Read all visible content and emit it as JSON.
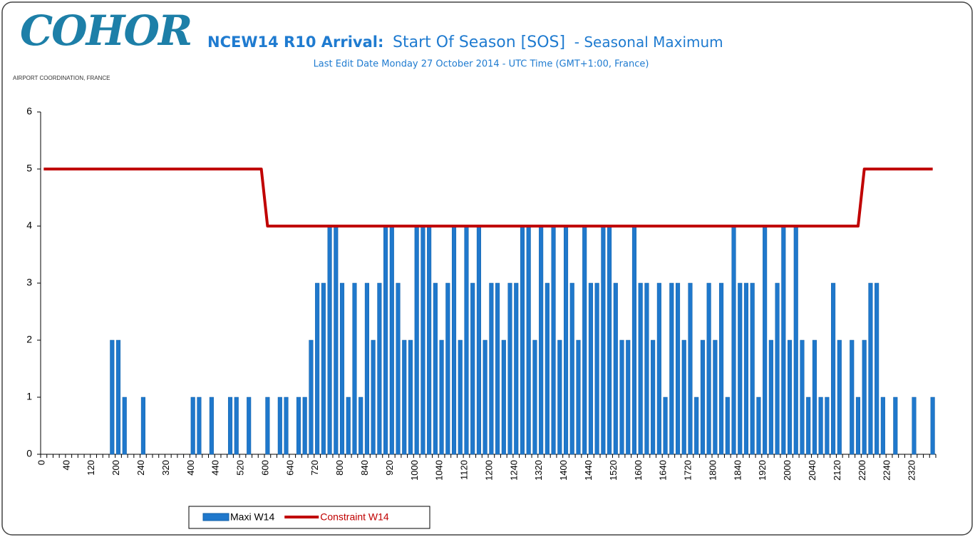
{
  "logo": {
    "name": "COHOR",
    "tagline": "AIRPORT COORDINATION, FRANCE"
  },
  "chart_data": {
    "type": "bar",
    "title": [
      "NCEW14 R10 Arrival:",
      "Start Of Season  [SOS]",
      "- Seasonal Maximum"
    ],
    "subtitle": "Last Edit Date Monday 27 October 2014 - UTC Time (GMT+1:00, France)",
    "categories": [
      "0",
      null,
      null,
      null,
      "40",
      null,
      null,
      null,
      "120",
      null,
      null,
      null,
      "200",
      null,
      null,
      null,
      "240",
      null,
      null,
      null,
      "320",
      null,
      null,
      null,
      "400",
      null,
      null,
      null,
      "440",
      null,
      null,
      null,
      "520",
      null,
      null,
      null,
      "600",
      null,
      null,
      null,
      "640",
      null,
      null,
      null,
      "720",
      null,
      null,
      null,
      "800",
      null,
      null,
      null,
      "840",
      null,
      null,
      null,
      "920",
      null,
      null,
      null,
      "1000",
      null,
      null,
      null,
      "1040",
      null,
      null,
      null,
      "1120",
      null,
      null,
      null,
      "1200",
      null,
      null,
      null,
      "1240",
      null,
      null,
      null,
      "1320",
      null,
      null,
      null,
      "1400",
      null,
      null,
      null,
      "1440",
      null,
      null,
      null,
      "1520",
      null,
      null,
      null,
      "1600",
      null,
      null,
      null,
      "1640",
      null,
      null,
      null,
      "1720",
      null,
      null,
      null,
      "1800",
      null,
      null,
      null,
      "1840",
      null,
      null,
      null,
      "1920",
      null,
      null,
      null,
      "2000",
      null,
      null,
      null,
      "2040",
      null,
      null,
      null,
      "2120",
      null,
      null,
      null,
      "2200",
      null,
      null,
      null,
      "2240",
      null,
      null,
      null,
      "2320",
      null,
      null,
      null
    ],
    "series": [
      {
        "name": "Maxi W14",
        "type": "bar",
        "color": "#1f78cc",
        "values": [
          0,
          0,
          0,
          0,
          0,
          0,
          0,
          0,
          0,
          0,
          0,
          2,
          2,
          1,
          0,
          0,
          1,
          0,
          0,
          0,
          0,
          0,
          0,
          0,
          1,
          1,
          0,
          1,
          0,
          0,
          1,
          1,
          0,
          1,
          0,
          0,
          1,
          0,
          1,
          1,
          0,
          1,
          1,
          2,
          3,
          3,
          4,
          4,
          3,
          1,
          3,
          1,
          3,
          2,
          3,
          4,
          4,
          3,
          2,
          2,
          4,
          4,
          4,
          3,
          2,
          3,
          4,
          2,
          4,
          3,
          4,
          2,
          3,
          3,
          2,
          3,
          3,
          4,
          4,
          2,
          4,
          3,
          4,
          2,
          4,
          3,
          2,
          4,
          3,
          3,
          4,
          4,
          3,
          2,
          2,
          4,
          3,
          3,
          2,
          3,
          1,
          3,
          3,
          2,
          3,
          1,
          2,
          3,
          2,
          3,
          1,
          4,
          3,
          3,
          3,
          1,
          4,
          2,
          3,
          4,
          2,
          4,
          2,
          1,
          2,
          1,
          1,
          3,
          2,
          0,
          2,
          1,
          2,
          3,
          3,
          1,
          0,
          1,
          0,
          0,
          1,
          0,
          0,
          1
        ]
      },
      {
        "name": "Constraint W14",
        "type": "line",
        "color": "#c00000",
        "values": [
          5,
          5,
          5,
          5,
          5,
          5,
          5,
          5,
          5,
          5,
          5,
          5,
          5,
          5,
          5,
          5,
          5,
          5,
          5,
          5,
          5,
          5,
          5,
          5,
          5,
          5,
          5,
          5,
          5,
          5,
          5,
          5,
          5,
          5,
          5,
          5,
          4,
          4,
          4,
          4,
          4,
          4,
          4,
          4,
          4,
          4,
          4,
          4,
          4,
          4,
          4,
          4,
          4,
          4,
          4,
          4,
          4,
          4,
          4,
          4,
          4,
          4,
          4,
          4,
          4,
          4,
          4,
          4,
          4,
          4,
          4,
          4,
          4,
          4,
          4,
          4,
          4,
          4,
          4,
          4,
          4,
          4,
          4,
          4,
          4,
          4,
          4,
          4,
          4,
          4,
          4,
          4,
          4,
          4,
          4,
          4,
          4,
          4,
          4,
          4,
          4,
          4,
          4,
          4,
          4,
          4,
          4,
          4,
          4,
          4,
          4,
          4,
          4,
          4,
          4,
          4,
          4,
          4,
          4,
          4,
          4,
          4,
          4,
          4,
          4,
          4,
          4,
          4,
          4,
          4,
          4,
          4,
          5,
          5,
          5,
          5,
          5,
          5,
          5,
          5,
          5,
          5,
          5,
          5
        ]
      }
    ],
    "ylim": [
      0,
      6
    ],
    "yticks": [
      0,
      1,
      2,
      3,
      4,
      5,
      6
    ],
    "grid": false,
    "legend": "bottom"
  }
}
